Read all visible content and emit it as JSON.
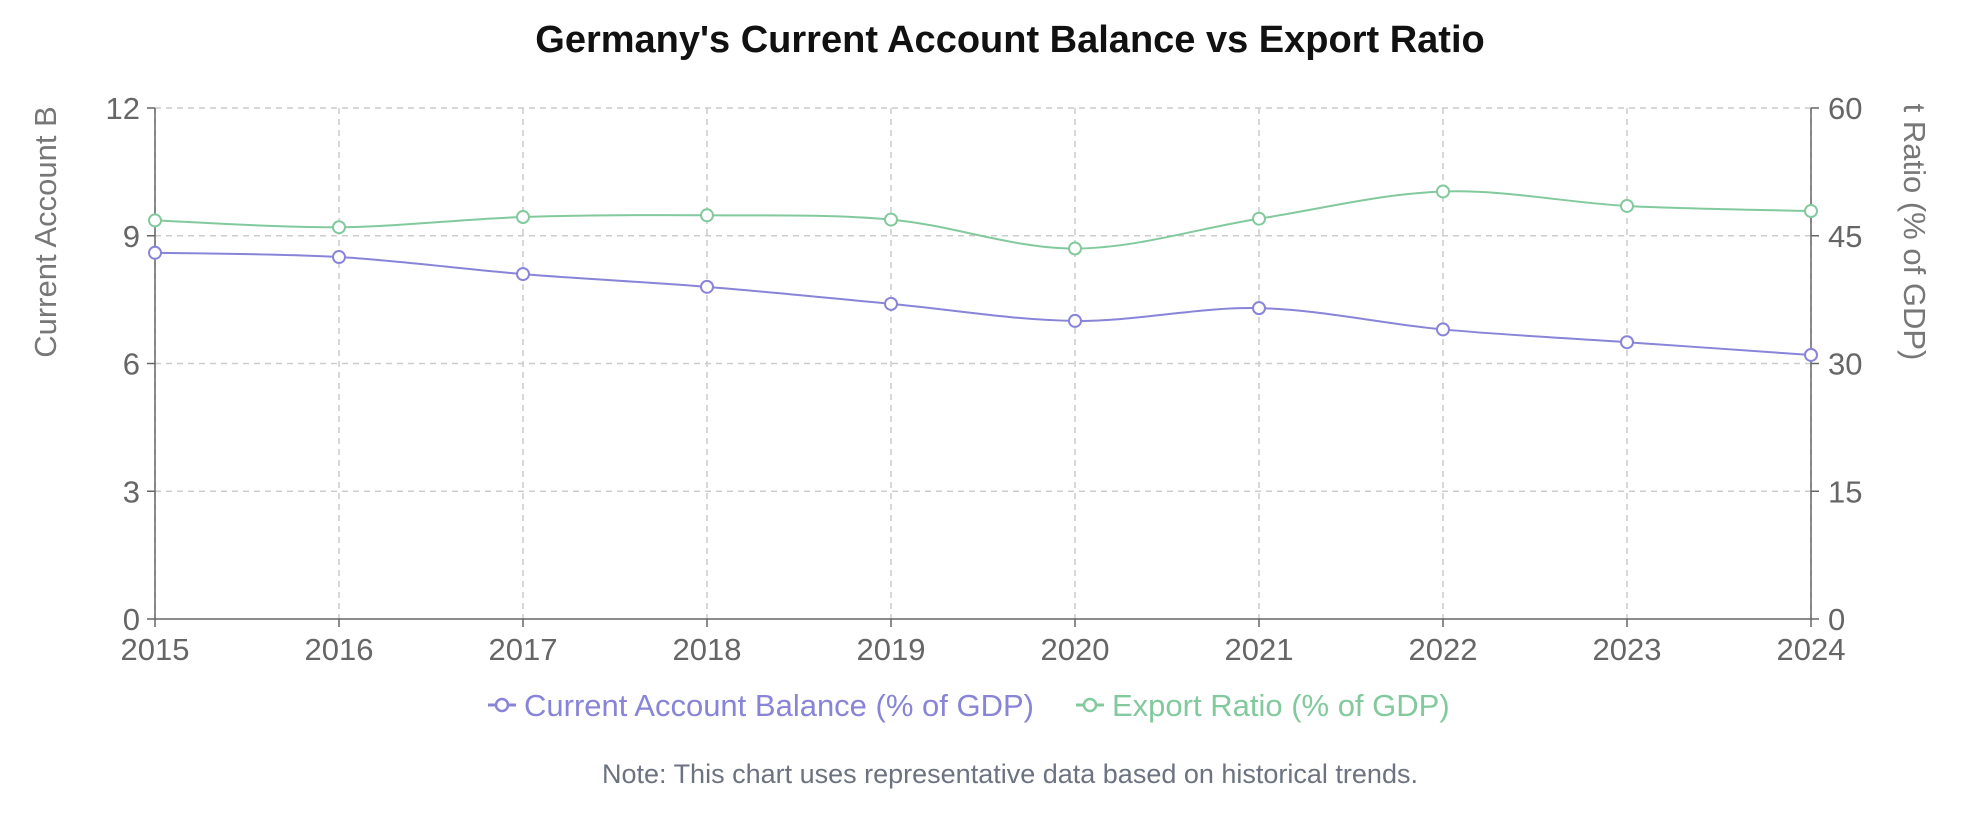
{
  "chart_data": {
    "type": "line",
    "title": "Germany's Current Account Balance vs Export Ratio",
    "x": [
      "2015",
      "2016",
      "2017",
      "2018",
      "2019",
      "2020",
      "2021",
      "2022",
      "2023",
      "2024"
    ],
    "y_left": {
      "label": "Current Account B",
      "range": [
        0,
        12
      ],
      "ticks": [
        "0",
        "3",
        "6",
        "9",
        "12"
      ]
    },
    "y_right": {
      "label": "t Ratio (% of GDP)",
      "range": [
        0,
        60
      ],
      "ticks": [
        "0",
        "15",
        "30",
        "45",
        "60"
      ]
    },
    "series": [
      {
        "name": "Current Account Balance (% of GDP)",
        "axis": "left",
        "color": "#8884d8",
        "values": [
          8.6,
          8.5,
          8.1,
          7.8,
          7.4,
          7.0,
          7.3,
          6.8,
          6.5,
          6.2
        ]
      },
      {
        "name": "Export Ratio (% of GDP)",
        "axis": "right",
        "color": "#82ca9d",
        "values": [
          46.8,
          46.0,
          47.2,
          47.4,
          46.9,
          43.5,
          47.0,
          50.2,
          48.5,
          47.9
        ]
      }
    ],
    "grid": true,
    "legend_position": "bottom"
  },
  "note": "Note: This chart uses representative data based on historical trends."
}
